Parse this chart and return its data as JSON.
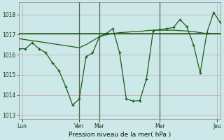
{
  "xlabel": "Pression niveau de la mer( hPa )",
  "background_color": "#cce8e8",
  "grid_color_major": "#b0cccc",
  "grid_color_minor": "#c8dede",
  "line_color": "#1a5e1a",
  "vline_color": "#556655",
  "xlim": [
    0,
    120
  ],
  "ylim": [
    1012.8,
    1018.6
  ],
  "yticks": [
    1013,
    1014,
    1015,
    1016,
    1017,
    1018
  ],
  "xtick_positions": [
    2,
    36,
    48,
    84,
    118
  ],
  "xtick_labels": [
    "Lun",
    "Ven",
    "Mar",
    "Mer",
    "Jeu"
  ],
  "vline_positions": [
    36,
    48,
    84
  ],
  "series1_x": [
    0,
    4,
    8,
    12,
    16,
    20,
    24,
    28,
    32,
    36,
    40,
    44,
    48,
    52,
    56,
    60,
    64,
    68,
    72,
    76,
    80,
    84,
    88,
    92,
    96,
    100,
    104,
    108,
    112,
    116,
    120
  ],
  "series1_y": [
    1016.3,
    1016.3,
    1016.6,
    1016.3,
    1016.1,
    1015.6,
    1015.2,
    1014.4,
    1013.5,
    1013.8,
    1015.9,
    1016.1,
    1016.9,
    1017.05,
    1017.3,
    1016.1,
    1013.8,
    1013.7,
    1013.72,
    1014.8,
    1017.2,
    1017.25,
    1017.3,
    1017.35,
    1017.75,
    1017.4,
    1016.5,
    1015.1,
    1017.1,
    1018.1,
    1017.6
  ],
  "series2_x": [
    0,
    120
  ],
  "series2_y": [
    1017.05,
    1017.05
  ],
  "series3_x": [
    0,
    4,
    8,
    12,
    16,
    20,
    24,
    28,
    32,
    36,
    40,
    44,
    48,
    52,
    56,
    60,
    64,
    68,
    72,
    76,
    80,
    84,
    88,
    92,
    96,
    100,
    104,
    108,
    112,
    116,
    120
  ],
  "series3_y": [
    1016.8,
    1016.75,
    1016.7,
    1016.65,
    1016.6,
    1016.55,
    1016.5,
    1016.45,
    1016.4,
    1016.35,
    1016.5,
    1016.7,
    1016.9,
    1017.0,
    1017.05,
    1017.1,
    1017.12,
    1017.15,
    1017.15,
    1017.2,
    1017.22,
    1017.22,
    1017.22,
    1017.22,
    1017.2,
    1017.18,
    1017.15,
    1017.1,
    1017.05,
    1017.05,
    1017.05
  ]
}
